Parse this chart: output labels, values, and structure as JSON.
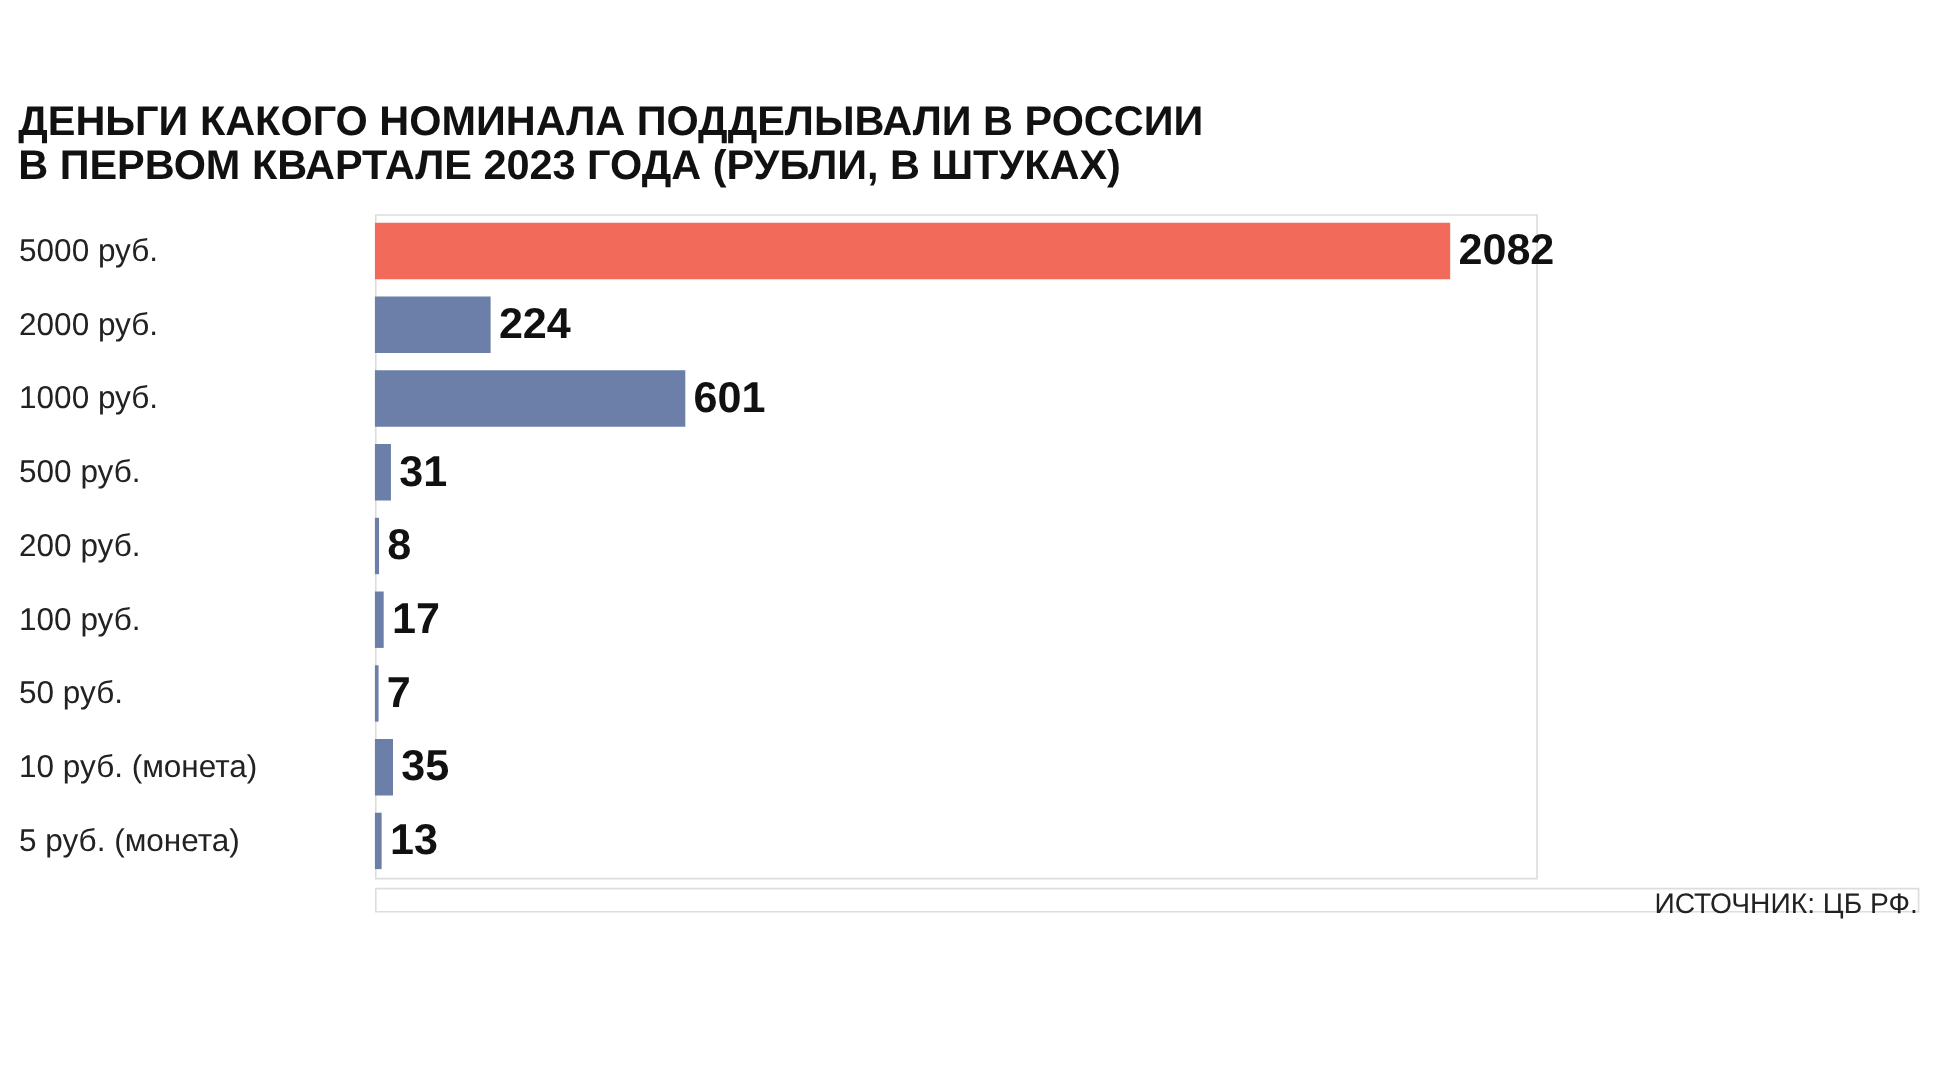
{
  "chart_data": {
    "type": "bar",
    "orientation": "horizontal",
    "title": [
      "ДЕНЬГИ КАКОГО НОМИНАЛА ПОДДЕЛЫВАЛИ В РОССИИ",
      "В ПЕРВОМ КВАРТАЛЕ 2023 ГОДА (РУБЛИ, В ШТУКАХ)"
    ],
    "categories": [
      "5000 руб.",
      "2000 руб.",
      "1000 руб.",
      "500 руб.",
      "200 руб.",
      "100 руб.",
      "50 руб.",
      "10 руб. (монета)",
      "5 руб. (монета)"
    ],
    "values": [
      2082,
      224,
      601,
      31,
      8,
      17,
      7,
      35,
      13
    ],
    "colors": [
      "#f26a5a",
      "#6b7fa8",
      "#6b7fa8",
      "#6b7fa8",
      "#6b7fa8",
      "#6b7fa8",
      "#6b7fa8",
      "#6b7fa8",
      "#6b7fa8"
    ],
    "data_labels": true,
    "grid": false,
    "annotations": [
      "ИСТОЧНИК: ЦБ РФ."
    ]
  }
}
